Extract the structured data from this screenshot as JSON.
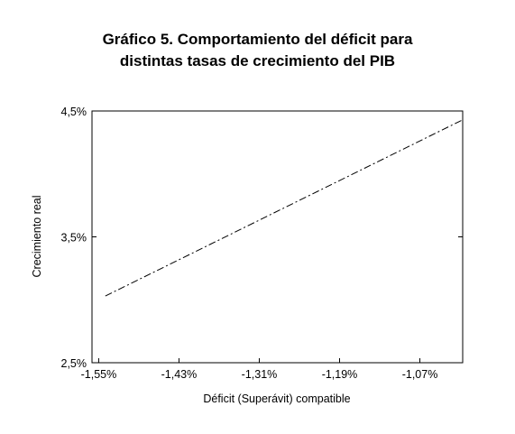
{
  "chart_data": {
    "type": "line",
    "title_line1": "Gráfico 5. Comportamiento del déficit para",
    "title_line2": "distintas tasas de crecimiento del PIB",
    "xlabel": "Déficit (Superávit) compatible",
    "ylabel": "Crecimiento real",
    "x_ticks": [
      {
        "value": -1.55,
        "label": "-1,55%"
      },
      {
        "value": -1.43,
        "label": "-1,43%"
      },
      {
        "value": -1.31,
        "label": "-1,31%"
      },
      {
        "value": -1.19,
        "label": "-1,19%"
      },
      {
        "value": -1.07,
        "label": "-1,07%"
      }
    ],
    "y_ticks": [
      {
        "value": 2.5,
        "label": "2,5%"
      },
      {
        "value": 3.5,
        "label": "3,5%"
      },
      {
        "value": 4.5,
        "label": "4,5%"
      }
    ],
    "xlim": [
      -1.56,
      -1.006
    ],
    "ylim": [
      2.5,
      4.5
    ],
    "grid": false,
    "series": [
      {
        "x": [
          -1.54,
          -1.006
        ],
        "y": [
          3.03,
          4.43
        ],
        "style": "dash-dot",
        "color": "#000000"
      }
    ]
  }
}
